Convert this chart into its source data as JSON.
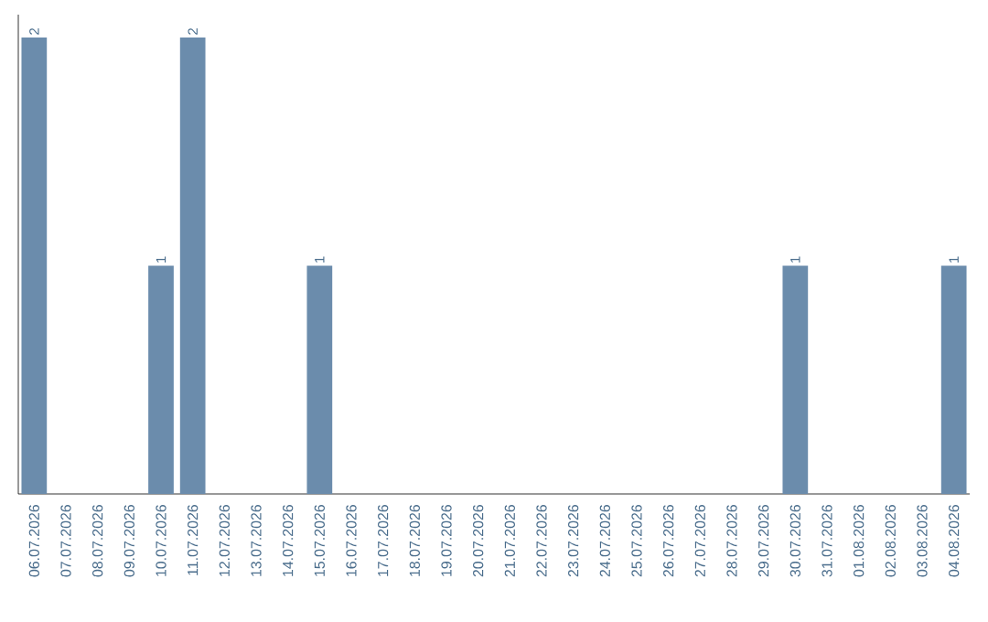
{
  "chart_data": {
    "type": "bar",
    "categories": [
      "06.07.2026",
      "07.07.2026",
      "08.07.2026",
      "09.07.2026",
      "10.07.2026",
      "11.07.2026",
      "12.07.2026",
      "13.07.2026",
      "14.07.2026",
      "15.07.2026",
      "16.07.2026",
      "17.07.2026",
      "18.07.2026",
      "19.07.2026",
      "20.07.2026",
      "21.07.2026",
      "22.07.2026",
      "23.07.2026",
      "24.07.2026",
      "25.07.2026",
      "26.07.2026",
      "27.07.2026",
      "28.07.2026",
      "29.07.2026",
      "30.07.2026",
      "31.07.2026",
      "01.08.2026",
      "02.08.2026",
      "03.08.2026",
      "04.08.2026"
    ],
    "values": [
      2,
      0,
      0,
      0,
      1,
      2,
      0,
      0,
      0,
      1,
      0,
      0,
      0,
      0,
      0,
      0,
      0,
      0,
      0,
      0,
      0,
      0,
      0,
      0,
      1,
      0,
      0,
      0,
      0,
      1
    ],
    "value_labels": [
      "2",
      null,
      null,
      null,
      "1",
      "2",
      null,
      null,
      null,
      "1",
      null,
      null,
      null,
      null,
      null,
      null,
      null,
      null,
      null,
      null,
      null,
      null,
      null,
      null,
      "1",
      null,
      null,
      null,
      null,
      "1"
    ],
    "color": "#6b8cac"
  }
}
